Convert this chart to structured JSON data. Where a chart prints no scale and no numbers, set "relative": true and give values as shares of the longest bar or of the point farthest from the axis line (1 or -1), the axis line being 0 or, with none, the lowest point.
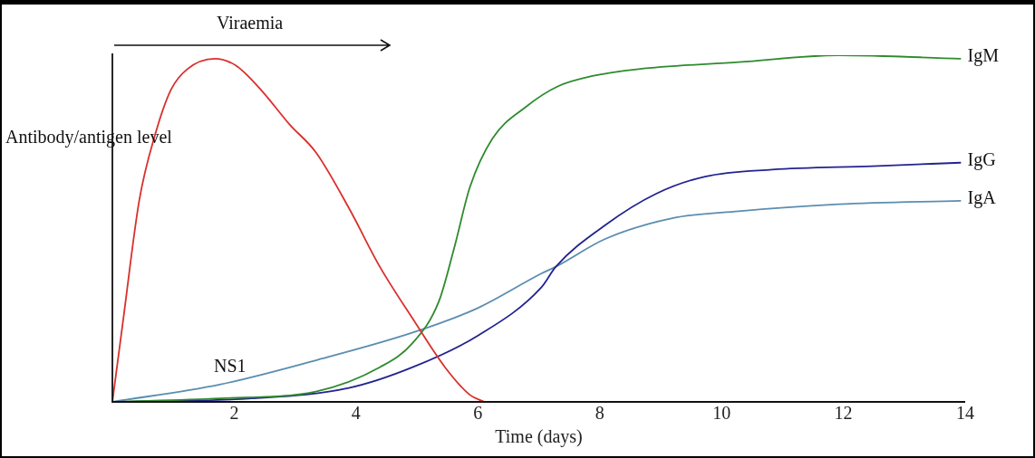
{
  "chart_data": {
    "type": "line",
    "relative": true,
    "xlabel": "Time (days)",
    "ylabel": "Antibody/antigen level",
    "xlim": [
      0,
      14
    ],
    "xticks": [
      2,
      4,
      6,
      8,
      10,
      12,
      14
    ],
    "legend": false,
    "marker": "none",
    "line_style": "solid",
    "grid": false,
    "annotations": [
      "Viraemia",
      "NS1"
    ],
    "series": [
      {
        "color": "#d9302c",
        "x": [
          0,
          0.18,
          0.44,
          0.7,
          0.96,
          1.23,
          1.68,
          2.03,
          2.44,
          2.91,
          3.34,
          3.88,
          4.39,
          4.93,
          5.46,
          5.87,
          6.11
        ],
        "values": [
          0,
          0.24,
          0.58,
          0.77,
          0.9,
          0.96,
          0.99,
          0.97,
          0.9,
          0.8,
          0.72,
          0.56,
          0.39,
          0.24,
          0.1,
          0.02,
          0
        ]
      },
      {
        "name": "IgM",
        "color": "#2e8b2e",
        "x": [
          0,
          1.76,
          3.34,
          4.39,
          4.93,
          5.36,
          5.62,
          5.87,
          6.24,
          6.78,
          7.31,
          7.88,
          8.64,
          10.28,
          11.92,
          13.92
        ],
        "values": [
          0,
          0.01,
          0.03,
          0.1,
          0.17,
          0.29,
          0.45,
          0.62,
          0.76,
          0.85,
          0.91,
          0.94,
          0.96,
          0.98,
          1,
          0.99
        ]
      },
      {
        "name": "IgG",
        "color": "#23238f",
        "x": [
          0,
          2.29,
          3.88,
          4.93,
          5.99,
          7.04,
          7.28,
          8.09,
          8.92,
          9.73,
          10.83,
          12.47,
          13.92
        ],
        "values": [
          0,
          0.01,
          0.04,
          0.1,
          0.19,
          0.33,
          0.39,
          0.51,
          0.6,
          0.65,
          0.67,
          0.68,
          0.69
        ]
      },
      {
        "name": "IgA",
        "color": "#5b8db0",
        "x": [
          0,
          1.76,
          3.34,
          4.93,
          5.99,
          7.04,
          7.28,
          8.09,
          9.19,
          10.28,
          11.92,
          13.92
        ],
        "values": [
          0,
          0.05,
          0.12,
          0.2,
          0.27,
          0.37,
          0.39,
          0.47,
          0.53,
          0.55,
          0.57,
          0.58
        ]
      }
    ]
  }
}
